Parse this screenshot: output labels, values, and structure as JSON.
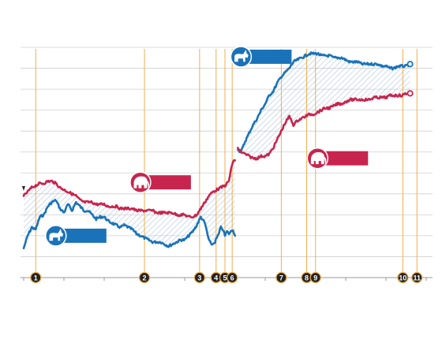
{
  "chart_data": {
    "type": "line",
    "title": "",
    "xlabel": "",
    "ylabel": "",
    "grid": true,
    "legend": "inline badges, no text",
    "colors": {
      "blue": "#1a73b8",
      "red": "#c7254e",
      "marker_line": "#f0ad4e",
      "grid": "#cfcfcf",
      "hatch": "#b8cde0",
      "badge_circle": "#222222"
    },
    "icons": {
      "blue": "donkey-icon",
      "red": "elephant-icon"
    },
    "x_range": [
      0,
      1000
    ],
    "y_range": [
      0,
      11
    ],
    "series": [
      {
        "key": "blue",
        "segments": [
          [
            [
              0,
              1.4
            ],
            [
              10,
              2.0
            ],
            [
              20,
              2.4
            ],
            [
              30,
              2.3
            ],
            [
              40,
              2.9
            ],
            [
              50,
              3.0
            ],
            [
              60,
              3.4
            ],
            [
              70,
              3.6
            ],
            [
              80,
              3.7
            ],
            [
              90,
              3.3
            ],
            [
              100,
              3.1
            ],
            [
              110,
              3.5
            ],
            [
              120,
              3.2
            ],
            [
              130,
              3.6
            ],
            [
              140,
              3.4
            ],
            [
              150,
              3.2
            ],
            [
              160,
              3.2
            ],
            [
              170,
              3.0
            ],
            [
              180,
              2.8
            ],
            [
              190,
              2.9
            ],
            [
              200,
              2.9
            ],
            [
              210,
              2.7
            ],
            [
              220,
              2.6
            ],
            [
              230,
              2.5
            ],
            [
              240,
              2.4
            ],
            [
              250,
              2.5
            ],
            [
              260,
              2.4
            ],
            [
              270,
              2.3
            ],
            [
              280,
              2.1
            ],
            [
              290,
              2.0
            ],
            [
              300,
              1.9
            ],
            [
              310,
              1.8
            ],
            [
              320,
              1.7
            ],
            [
              330,
              1.7
            ],
            [
              340,
              1.7
            ],
            [
              350,
              1.6
            ],
            [
              360,
              1.5
            ],
            [
              370,
              1.6
            ],
            [
              380,
              1.7
            ],
            [
              390,
              1.8
            ],
            [
              400,
              1.8
            ],
            [
              410,
              2.0
            ],
            [
              420,
              2.2
            ],
            [
              430,
              2.5
            ],
            [
              440,
              2.9
            ],
            [
              450,
              2.6
            ],
            [
              455,
              2.2
            ],
            [
              460,
              1.8
            ],
            [
              465,
              1.6
            ],
            [
              470,
              1.6
            ],
            [
              475,
              1.7
            ],
            [
              480,
              1.9
            ],
            [
              485,
              2.1
            ],
            [
              490,
              2.4
            ],
            [
              495,
              2.3
            ],
            [
              500,
              2.0
            ],
            [
              505,
              2.2
            ],
            [
              510,
              2.1
            ],
            [
              515,
              2.2
            ],
            [
              520,
              2.3
            ],
            [
              525,
              2.0
            ]
          ],
          [
            [
              532,
              6.1
            ],
            [
              540,
              6.0
            ],
            [
              550,
              6.5
            ],
            [
              560,
              6.9
            ],
            [
              570,
              7.3
            ],
            [
              580,
              7.6
            ],
            [
              590,
              8.0
            ],
            [
              600,
              8.3
            ],
            [
              610,
              8.7
            ],
            [
              620,
              8.9
            ],
            [
              630,
              9.3
            ],
            [
              640,
              9.6
            ],
            [
              650,
              9.8
            ],
            [
              660,
              10.0
            ],
            [
              670,
              10.3
            ],
            [
              680,
              10.4
            ],
            [
              690,
              10.5
            ],
            [
              700,
              10.6
            ],
            [
              710,
              10.7
            ],
            [
              720,
              10.7
            ],
            [
              730,
              10.7
            ],
            [
              740,
              10.6
            ],
            [
              750,
              10.6
            ],
            [
              760,
              10.6
            ],
            [
              770,
              10.5
            ],
            [
              780,
              10.5
            ],
            [
              790,
              10.5
            ],
            [
              800,
              10.4
            ],
            [
              810,
              10.3
            ],
            [
              820,
              10.3
            ],
            [
              830,
              10.3
            ],
            [
              840,
              10.2
            ],
            [
              850,
              10.2
            ],
            [
              860,
              10.2
            ],
            [
              870,
              10.2
            ],
            [
              880,
              10.2
            ],
            [
              890,
              10.1
            ],
            [
              900,
              10.1
            ],
            [
              910,
              10.0
            ],
            [
              920,
              10.0
            ],
            [
              930,
              10.1
            ],
            [
              940,
              10.1
            ],
            [
              950,
              10.1
            ],
            [
              960,
              10.2
            ]
          ]
        ]
      },
      {
        "key": "red",
        "segments": [
          [
            [
              0,
              3.9
            ],
            [
              10,
              4.1
            ],
            [
              20,
              4.3
            ],
            [
              30,
              4.4
            ],
            [
              40,
              4.5
            ],
            [
              50,
              4.5
            ],
            [
              60,
              4.6
            ],
            [
              70,
              4.6
            ],
            [
              80,
              4.5
            ],
            [
              90,
              4.3
            ],
            [
              100,
              4.2
            ],
            [
              110,
              4.1
            ],
            [
              120,
              4.0
            ],
            [
              130,
              3.9
            ],
            [
              140,
              3.7
            ],
            [
              150,
              3.6
            ],
            [
              160,
              3.6
            ],
            [
              170,
              3.6
            ],
            [
              180,
              3.5
            ],
            [
              190,
              3.5
            ],
            [
              200,
              3.5
            ],
            [
              210,
              3.4
            ],
            [
              220,
              3.4
            ],
            [
              230,
              3.4
            ],
            [
              240,
              3.3
            ],
            [
              250,
              3.3
            ],
            [
              260,
              3.3
            ],
            [
              270,
              3.3
            ],
            [
              280,
              3.2
            ],
            [
              290,
              3.2
            ],
            [
              300,
              3.2
            ],
            [
              310,
              3.2
            ],
            [
              320,
              3.2
            ],
            [
              330,
              3.1
            ],
            [
              340,
              3.1
            ],
            [
              350,
              3.1
            ],
            [
              360,
              3.1
            ],
            [
              370,
              3.1
            ],
            [
              380,
              3.0
            ],
            [
              390,
              3.0
            ],
            [
              400,
              3.0
            ],
            [
              410,
              2.9
            ],
            [
              420,
              2.9
            ],
            [
              430,
              3.0
            ],
            [
              440,
              3.3
            ],
            [
              450,
              3.6
            ],
            [
              460,
              3.9
            ],
            [
              470,
              4.1
            ],
            [
              480,
              4.2
            ],
            [
              490,
              4.3
            ],
            [
              500,
              4.4
            ],
            [
              505,
              4.5
            ],
            [
              510,
              4.6
            ],
            [
              515,
              5.2
            ],
            [
              520,
              5.5
            ],
            [
              525,
              5.6
            ]
          ],
          [
            [
              532,
              6.2
            ],
            [
              540,
              6.0
            ],
            [
              550,
              5.9
            ],
            [
              560,
              5.8
            ],
            [
              570,
              5.7
            ],
            [
              580,
              5.7
            ],
            [
              590,
              5.8
            ],
            [
              600,
              5.8
            ],
            [
              610,
              5.9
            ],
            [
              620,
              6.2
            ],
            [
              630,
              6.6
            ],
            [
              640,
              7.0
            ],
            [
              650,
              7.4
            ],
            [
              660,
              7.7
            ],
            [
              670,
              7.3
            ],
            [
              680,
              7.5
            ],
            [
              690,
              7.6
            ],
            [
              700,
              7.7
            ],
            [
              710,
              7.8
            ],
            [
              720,
              7.8
            ],
            [
              730,
              7.9
            ],
            [
              740,
              8.0
            ],
            [
              750,
              8.1
            ],
            [
              760,
              8.1
            ],
            [
              770,
              8.2
            ],
            [
              780,
              8.3
            ],
            [
              790,
              8.3
            ],
            [
              800,
              8.4
            ],
            [
              810,
              8.5
            ],
            [
              820,
              8.5
            ],
            [
              830,
              8.5
            ],
            [
              840,
              8.5
            ],
            [
              850,
              8.5
            ],
            [
              860,
              8.5
            ],
            [
              870,
              8.6
            ],
            [
              880,
              8.6
            ],
            [
              890,
              8.6
            ],
            [
              900,
              8.6
            ],
            [
              910,
              8.7
            ],
            [
              920,
              8.7
            ],
            [
              930,
              8.7
            ],
            [
              940,
              8.7
            ],
            [
              950,
              8.8
            ],
            [
              960,
              8.8
            ]
          ]
        ]
      }
    ],
    "markers": [
      {
        "label": "1",
        "x": 30
      },
      {
        "label": "2",
        "x": 300
      },
      {
        "label": "3",
        "x": 437
      },
      {
        "label": "4",
        "x": 478
      },
      {
        "label": "5",
        "x": 500
      },
      {
        "label": "6",
        "x": 518
      },
      {
        "label": "7",
        "x": 640
      },
      {
        "label": "8",
        "x": 703
      },
      {
        "label": "9",
        "x": 725
      },
      {
        "label": "10",
        "x": 942
      },
      {
        "label": "11",
        "x": 977
      }
    ],
    "badges": [
      {
        "key": "blue",
        "x": 80,
        "y": 2.0
      },
      {
        "key": "red",
        "x": 290,
        "y": 4.55
      },
      {
        "key": "blue",
        "x": 540,
        "y": 10.55
      },
      {
        "key": "red",
        "x": 730,
        "y": 5.7
      }
    ]
  }
}
